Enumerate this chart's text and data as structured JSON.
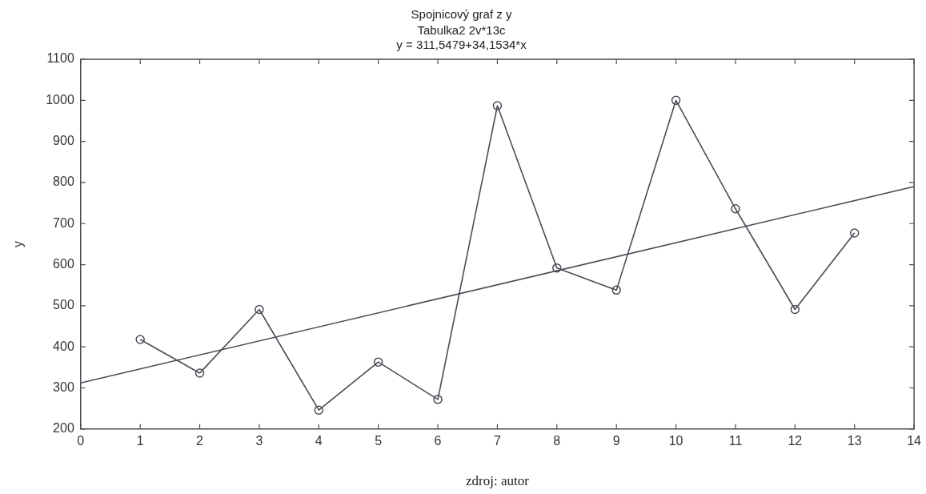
{
  "chart_data": {
    "type": "line",
    "title": "Spojnicový graf z y",
    "subtitle": "Tabulka2 2v*13c",
    "ylabel": "y",
    "annotations": [
      "y = 311,5479+34,1534*x",
      "zdroj: autor"
    ],
    "x": [
      1,
      2,
      3,
      4,
      5,
      6,
      7,
      8,
      9,
      10,
      11,
      12,
      13
    ],
    "series": [
      {
        "color": "#4a4d55",
        "values": [
          418,
          336,
          491,
          246,
          363,
          272,
          987,
          592,
          538,
          1000,
          736,
          491,
          677
        ],
        "marker": "circle"
      },
      {
        "type": "line",
        "color": "#4a4d55",
        "x": [
          0,
          14
        ],
        "values": [
          312,
          790
        ],
        "marker": "none"
      }
    ],
    "xlim": [
      0,
      14
    ],
    "xticks": [
      0,
      1,
      2,
      3,
      4,
      5,
      6,
      7,
      8,
      9,
      10,
      11,
      12,
      13,
      14
    ],
    "ylim": [
      200,
      1100
    ],
    "yticks": [
      200,
      300,
      400,
      500,
      600,
      700,
      800,
      900,
      1000,
      1100
    ],
    "grid": false,
    "legend": false,
    "line_style": "solid"
  }
}
